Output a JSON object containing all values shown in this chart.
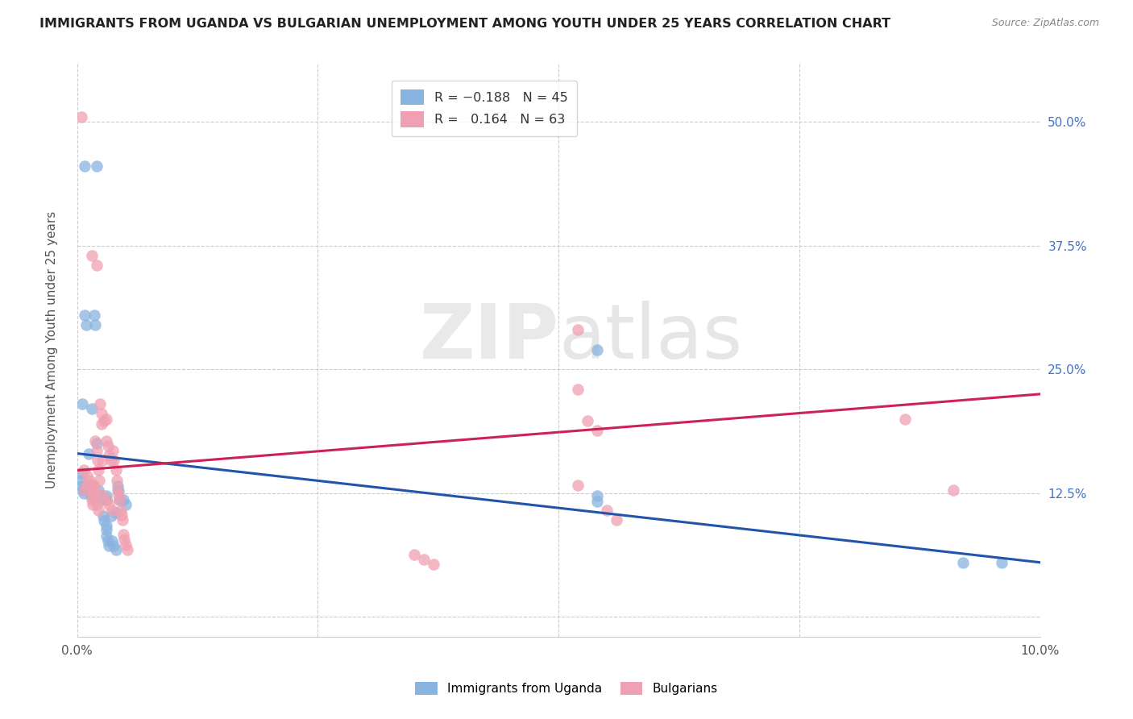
{
  "title": "IMMIGRANTS FROM UGANDA VS BULGARIAN UNEMPLOYMENT AMONG YOUTH UNDER 25 YEARS CORRELATION CHART",
  "source": "Source: ZipAtlas.com",
  "ylabel": "Unemployment Among Youth under 25 years",
  "y_ticks": [
    0.0,
    0.125,
    0.25,
    0.375,
    0.5
  ],
  "y_tick_labels": [
    "",
    "12.5%",
    "25.0%",
    "37.5%",
    "50.0%"
  ],
  "x_range": [
    0.0,
    0.1
  ],
  "y_range": [
    -0.02,
    0.56
  ],
  "legend_r1": "R = -0.188",
  "legend_n1": "N = 45",
  "legend_r2": "R =  0.164",
  "legend_n2": "N = 63",
  "color_blue": "#8ab4e0",
  "color_pink": "#f0a0b0",
  "line_color_blue": "#2255aa",
  "line_color_pink": "#cc2255",
  "watermark": "ZIPatlas",
  "blue_points": [
    [
      0.0008,
      0.455
    ],
    [
      0.0015,
      0.21
    ],
    [
      0.002,
      0.455
    ],
    [
      0.0018,
      0.305
    ],
    [
      0.0019,
      0.295
    ],
    [
      0.0008,
      0.305
    ],
    [
      0.0009,
      0.295
    ],
    [
      0.0012,
      0.165
    ],
    [
      0.0005,
      0.215
    ],
    [
      0.0004,
      0.145
    ],
    [
      0.0004,
      0.138
    ],
    [
      0.0004,
      0.132
    ],
    [
      0.0006,
      0.128
    ],
    [
      0.0007,
      0.125
    ],
    [
      0.001,
      0.13
    ],
    [
      0.0013,
      0.128
    ],
    [
      0.0014,
      0.122
    ],
    [
      0.002,
      0.175
    ],
    [
      0.0022,
      0.128
    ],
    [
      0.0022,
      0.122
    ],
    [
      0.0025,
      0.118
    ],
    [
      0.003,
      0.122
    ],
    [
      0.003,
      0.118
    ],
    [
      0.003,
      0.092
    ],
    [
      0.003,
      0.088
    ],
    [
      0.0035,
      0.102
    ],
    [
      0.004,
      0.105
    ],
    [
      0.0027,
      0.102
    ],
    [
      0.0028,
      0.097
    ],
    [
      0.003,
      0.082
    ],
    [
      0.0032,
      0.077
    ],
    [
      0.0033,
      0.072
    ],
    [
      0.0036,
      0.077
    ],
    [
      0.0038,
      0.072
    ],
    [
      0.004,
      0.068
    ],
    [
      0.0042,
      0.132
    ],
    [
      0.0043,
      0.127
    ],
    [
      0.0044,
      0.118
    ],
    [
      0.0048,
      0.118
    ],
    [
      0.005,
      0.113
    ],
    [
      0.054,
      0.27
    ],
    [
      0.054,
      0.122
    ],
    [
      0.054,
      0.117
    ],
    [
      0.092,
      0.055
    ],
    [
      0.096,
      0.055
    ]
  ],
  "pink_points": [
    [
      0.0004,
      0.505
    ],
    [
      0.0015,
      0.365
    ],
    [
      0.002,
      0.355
    ],
    [
      0.003,
      0.2
    ],
    [
      0.0025,
      0.195
    ],
    [
      0.0007,
      0.148
    ],
    [
      0.001,
      0.143
    ],
    [
      0.0013,
      0.138
    ],
    [
      0.0015,
      0.133
    ],
    [
      0.0016,
      0.128
    ],
    [
      0.0017,
      0.133
    ],
    [
      0.0018,
      0.128
    ],
    [
      0.0019,
      0.178
    ],
    [
      0.002,
      0.168
    ],
    [
      0.0021,
      0.158
    ],
    [
      0.0022,
      0.148
    ],
    [
      0.0023,
      0.138
    ],
    [
      0.0024,
      0.215
    ],
    [
      0.0025,
      0.205
    ],
    [
      0.0026,
      0.158
    ],
    [
      0.0028,
      0.198
    ],
    [
      0.003,
      0.178
    ],
    [
      0.0032,
      0.173
    ],
    [
      0.0033,
      0.163
    ],
    [
      0.0035,
      0.158
    ],
    [
      0.0037,
      0.168
    ],
    [
      0.0038,
      0.158
    ],
    [
      0.004,
      0.148
    ],
    [
      0.0041,
      0.138
    ],
    [
      0.0042,
      0.128
    ],
    [
      0.0043,
      0.123
    ],
    [
      0.0044,
      0.118
    ],
    [
      0.0045,
      0.108
    ],
    [
      0.0046,
      0.103
    ],
    [
      0.0047,
      0.098
    ],
    [
      0.0048,
      0.083
    ],
    [
      0.0049,
      0.078
    ],
    [
      0.005,
      0.073
    ],
    [
      0.0052,
      0.068
    ],
    [
      0.052,
      0.29
    ],
    [
      0.052,
      0.23
    ],
    [
      0.052,
      0.133
    ],
    [
      0.053,
      0.198
    ],
    [
      0.054,
      0.188
    ],
    [
      0.055,
      0.108
    ],
    [
      0.056,
      0.098
    ],
    [
      0.0008,
      0.128
    ],
    [
      0.0015,
      0.118
    ],
    [
      0.0016,
      0.113
    ],
    [
      0.0018,
      0.123
    ],
    [
      0.002,
      0.113
    ],
    [
      0.0022,
      0.108
    ],
    [
      0.0025,
      0.123
    ],
    [
      0.003,
      0.118
    ],
    [
      0.0033,
      0.113
    ],
    [
      0.0036,
      0.108
    ],
    [
      0.0009,
      0.133
    ],
    [
      0.0017,
      0.123
    ],
    [
      0.035,
      0.063
    ],
    [
      0.036,
      0.058
    ],
    [
      0.037,
      0.053
    ],
    [
      0.086,
      0.2
    ],
    [
      0.091,
      0.128
    ]
  ],
  "blue_line": [
    [
      0.0,
      0.165
    ],
    [
      0.1,
      0.055
    ]
  ],
  "pink_line": [
    [
      0.0,
      0.148
    ],
    [
      0.1,
      0.225
    ]
  ]
}
